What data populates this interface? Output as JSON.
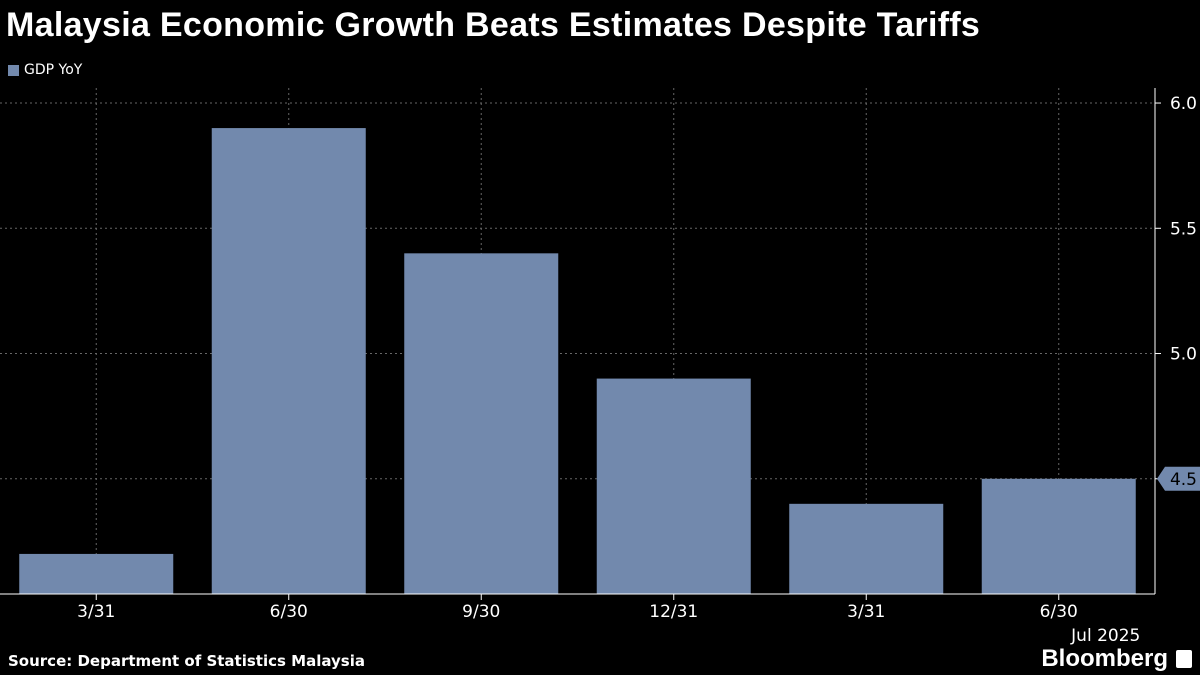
{
  "chart_data": {
    "type": "bar",
    "title": "Malaysia Economic Growth Beats Estimates Despite Tariffs",
    "legend": [
      "GDP YoY"
    ],
    "legend_position": "top-left",
    "categories": [
      "3/31",
      "6/30",
      "9/30",
      "12/31",
      "3/31",
      "6/30"
    ],
    "series": [
      {
        "name": "GDP YoY",
        "values": [
          4.2,
          5.9,
          5.4,
          4.9,
          4.4,
          4.5
        ]
      }
    ],
    "y_ticks": [
      "6.0",
      "5.5",
      "5.0",
      "4.5"
    ],
    "ylim": [
      4.04,
      6.06
    ],
    "y_axis_side": "right",
    "last_value_label": "4.5",
    "x_sublabel": "Jul 2025",
    "grid": true,
    "bar_color": "#7289ad"
  },
  "footer": {
    "source": "Source: Department of Statistics Malaysia",
    "brand": "Bloomberg"
  }
}
